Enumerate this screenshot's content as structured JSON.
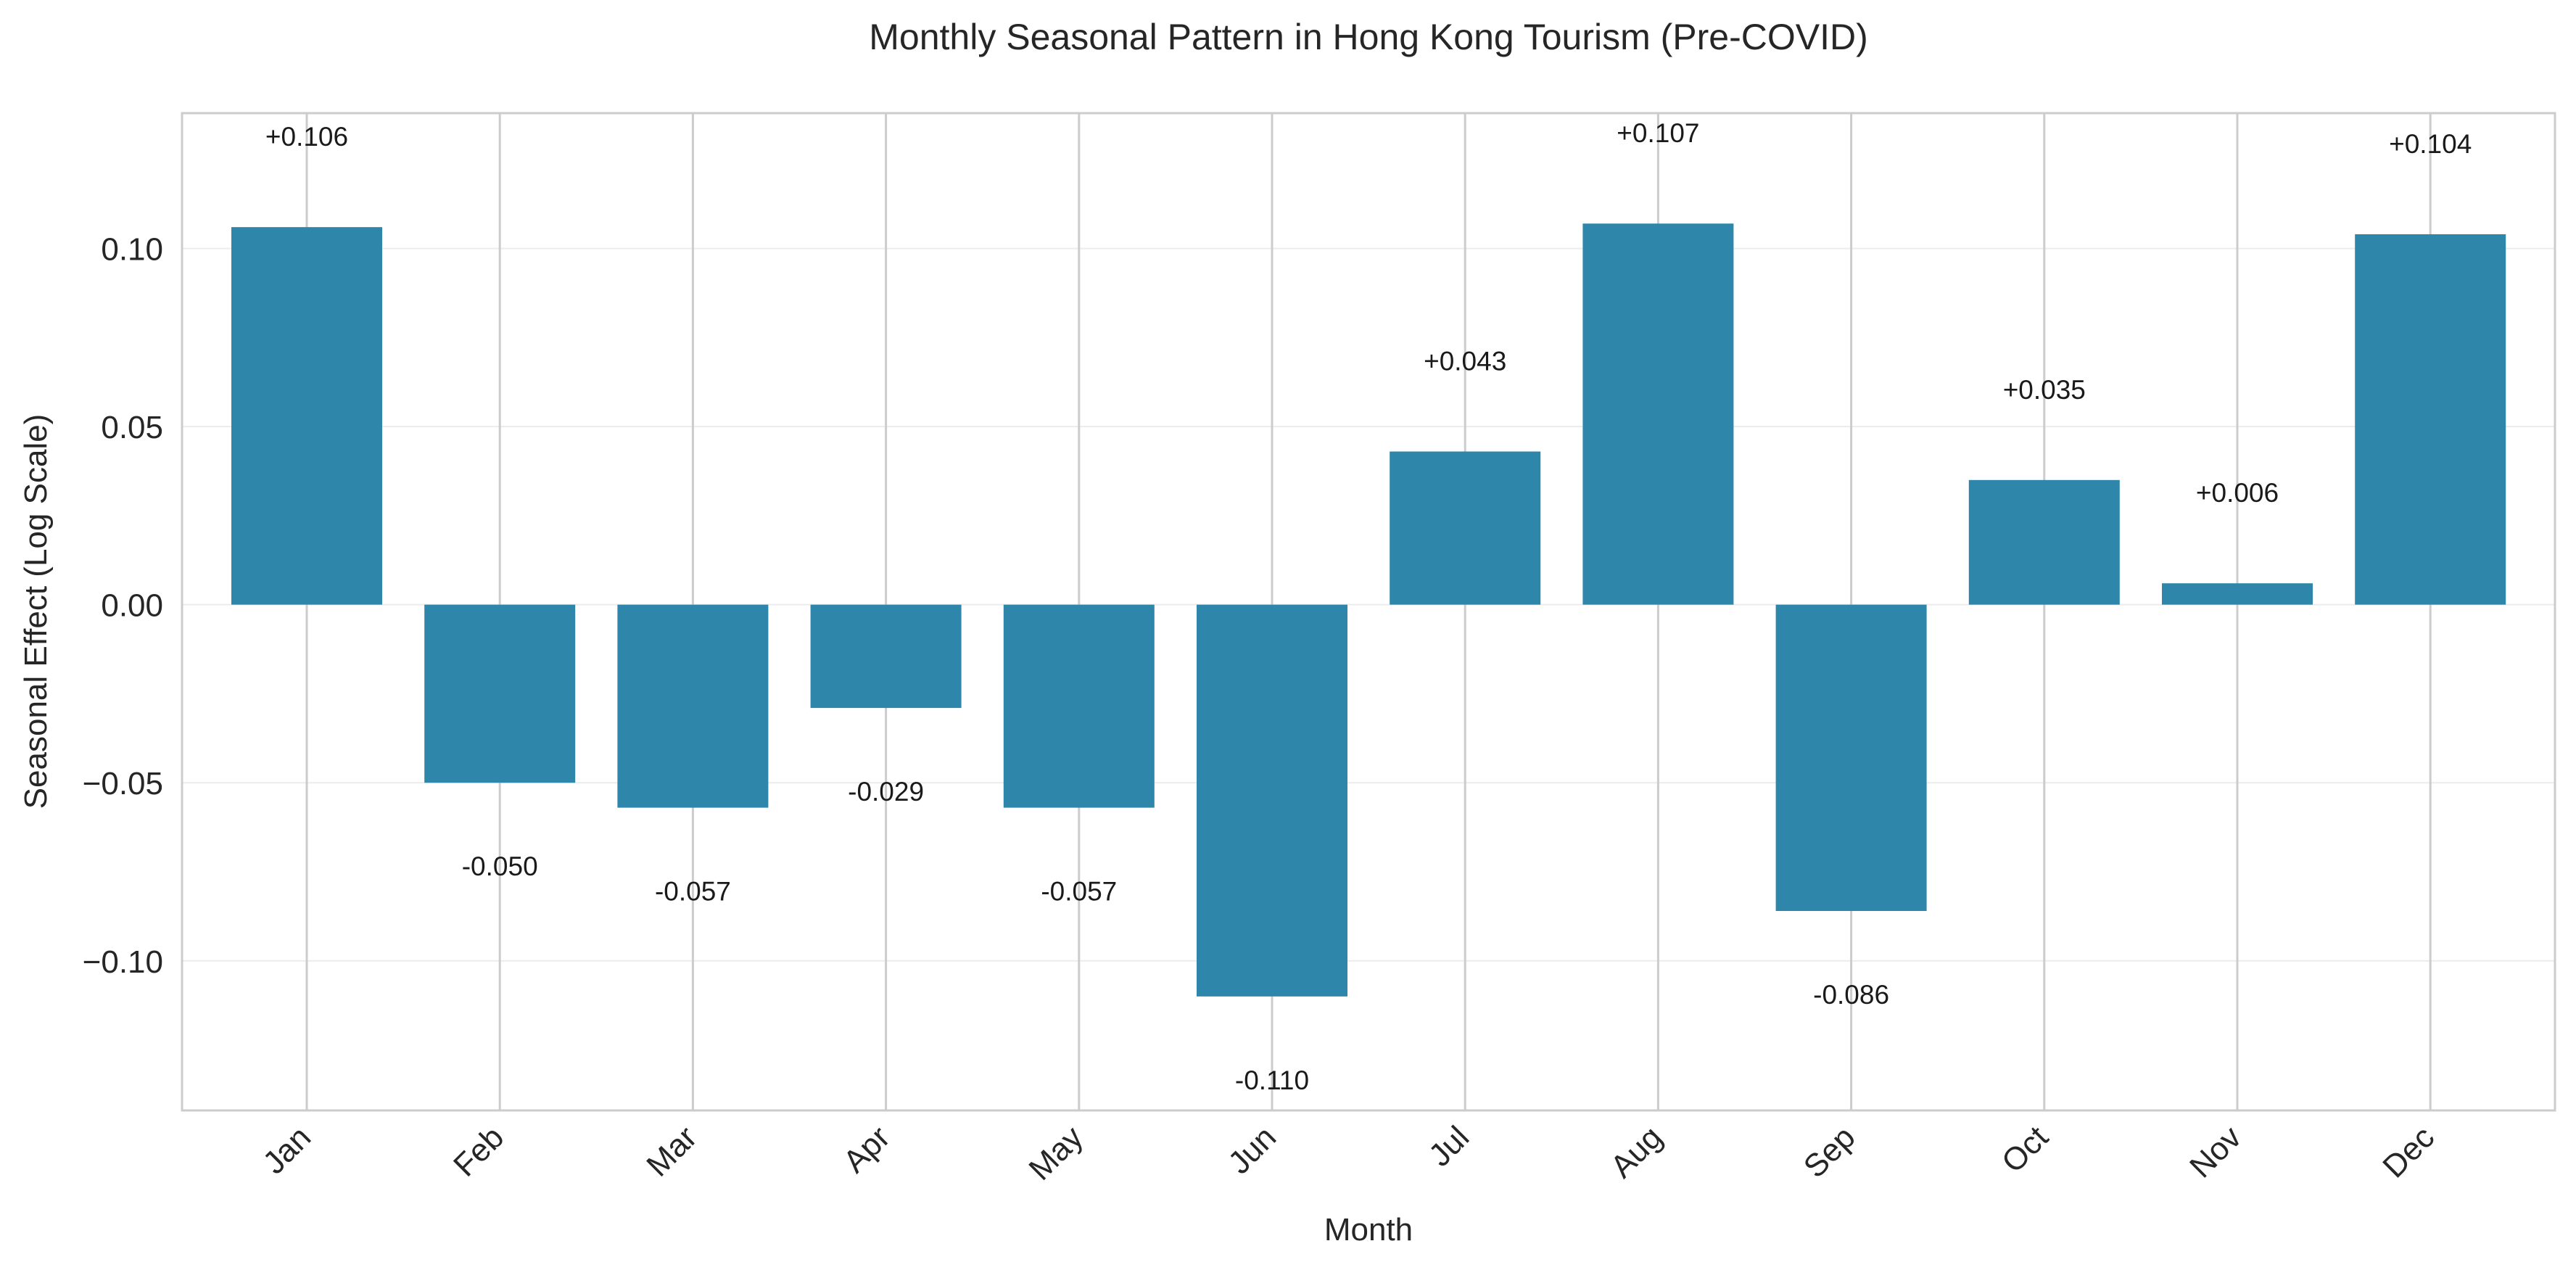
{
  "chart_data": {
    "type": "bar",
    "title": "Monthly Seasonal Pattern in Hong Kong Tourism (Pre-COVID)",
    "xlabel": "Month",
    "ylabel": "Seasonal Effect (Log Scale)",
    "categories": [
      "Jan",
      "Feb",
      "Mar",
      "Apr",
      "May",
      "Jun",
      "Jul",
      "Aug",
      "Sep",
      "Oct",
      "Nov",
      "Dec"
    ],
    "values": [
      0.106,
      -0.05,
      -0.057,
      -0.029,
      -0.057,
      -0.11,
      0.043,
      0.107,
      -0.086,
      0.035,
      0.006,
      0.104
    ],
    "data_labels": [
      "+0.106",
      "-0.050",
      "-0.057",
      "-0.029",
      "-0.057",
      "-0.110",
      "+0.043",
      "+0.107",
      "-0.086",
      "+0.035",
      "+0.006",
      "+0.104"
    ],
    "yticks": [
      -0.1,
      -0.05,
      0.0,
      0.05,
      0.1
    ],
    "ytick_labels": [
      "−0.10",
      "−0.05",
      "0.00",
      "0.05",
      "0.10"
    ],
    "ylim": [
      -0.142,
      0.138
    ],
    "grid": true,
    "bar_color": "#2e86ab",
    "grid_color": "#dddddd",
    "axis_color": "#cccccc"
  }
}
